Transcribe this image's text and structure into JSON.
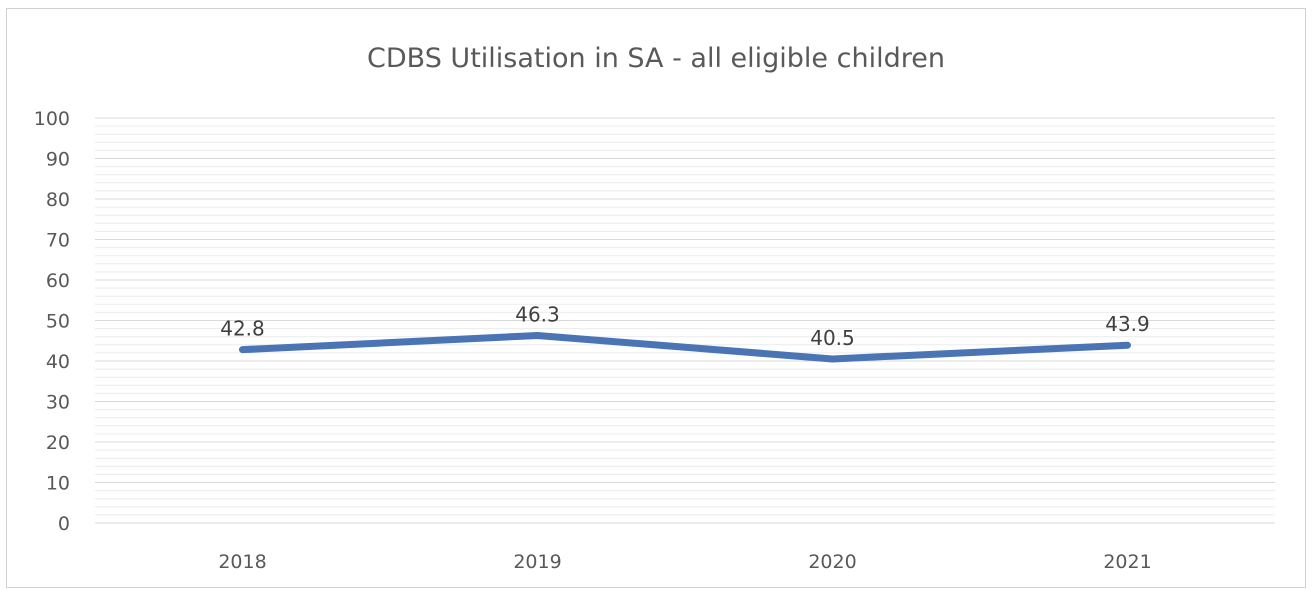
{
  "chart_data": {
    "type": "line",
    "title": "CDBS Utilisation in SA - all eligible children",
    "xlabel": "",
    "ylabel": "",
    "categories": [
      "2018",
      "2019",
      "2020",
      "2021"
    ],
    "series": [
      {
        "values": [
          42.8,
          46.3,
          40.5,
          43.9
        ],
        "labels": [
          "42.8",
          "46.3",
          "40.5",
          "43.9"
        ]
      }
    ],
    "ylim": [
      0,
      100
    ],
    "yticks": [
      "0",
      "10",
      "20",
      "30",
      "40",
      "50",
      "60",
      "70",
      "80",
      "90",
      "100"
    ],
    "grid": true,
    "legend": "none",
    "colors": {
      "line": "#4a74b4"
    }
  }
}
